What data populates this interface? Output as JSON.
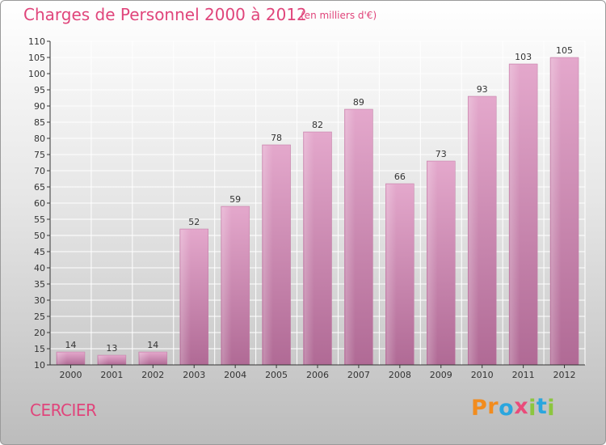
{
  "title": "Charges de Personnel 2000 à 2012",
  "unit_note": "(en milliers d'€)",
  "commune": "CERCIER",
  "logo": {
    "letters": [
      "P",
      "r",
      "o",
      "x",
      "i",
      "t",
      "i"
    ],
    "colors": [
      "#f28c1e",
      "#f28c1e",
      "#2aa6de",
      "#e94b7a",
      "#8cc63f",
      "#2aa6de",
      "#8cc63f"
    ]
  },
  "colors": {
    "title": "#e0457b",
    "bar_light": "#e4a8cc",
    "bar_dark": "#b06a95",
    "axis": "#333333",
    "grid": "#ffffff"
  },
  "chart_data": {
    "type": "bar",
    "title": "Charges de Personnel 2000 à 2012",
    "ylabel": "",
    "xlabel": "",
    "categories": [
      "2000",
      "2001",
      "2002",
      "2003",
      "2004",
      "2005",
      "2006",
      "2007",
      "2008",
      "2009",
      "2010",
      "2011",
      "2012"
    ],
    "values": [
      14,
      13,
      14,
      52,
      59,
      78,
      82,
      89,
      66,
      73,
      93,
      103,
      105
    ],
    "ylim": [
      10,
      110
    ],
    "yticks": [
      10,
      15,
      20,
      25,
      30,
      35,
      40,
      45,
      50,
      55,
      60,
      65,
      70,
      75,
      80,
      85,
      90,
      95,
      100,
      105,
      110
    ],
    "grid": true,
    "legend": "none"
  }
}
